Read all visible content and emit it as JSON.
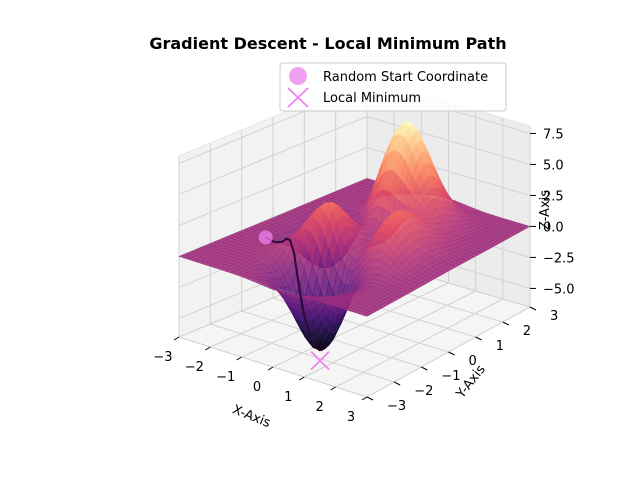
{
  "chart_data": {
    "type": "surface3d",
    "title": "Gradient Descent - Local Minimum Path",
    "xlabel": "X-Axis",
    "ylabel": "Y-Axis",
    "zlabel": "Z-Axis",
    "xlim": [
      -3,
      3
    ],
    "ylim": [
      -3,
      3
    ],
    "zlim": [
      -6.5,
      8.1
    ],
    "xticks": [
      "−3",
      "−2",
      "−1",
      "0",
      "1",
      "2",
      "3"
    ],
    "yticks": [
      "−3",
      "−2",
      "−1",
      "0",
      "1",
      "2",
      "3"
    ],
    "zticks": [
      "−5.0",
      "−2.5",
      "0.0",
      "2.5",
      "5.0",
      "7.5"
    ],
    "xtick_values": [
      -3,
      -2,
      -1,
      0,
      1,
      2,
      3
    ],
    "ytick_values": [
      -3,
      -2,
      -1,
      0,
      1,
      2,
      3
    ],
    "ztick_values": [
      -5,
      -2.5,
      0,
      2.5,
      5,
      7.5
    ],
    "surface_function": "peaks",
    "colormap": "magma",
    "legend": {
      "location": "upper-right",
      "entries": [
        {
          "label": "Random Start Coordinate",
          "marker": "circle",
          "color": "#ee82ee"
        },
        {
          "label": "Local Minimum",
          "marker": "x",
          "color": "#ee82ee"
        }
      ]
    },
    "path": [
      [
        -2.3,
        -0.9
      ],
      [
        -2.1,
        -0.95
      ],
      [
        -1.85,
        -1.0
      ],
      [
        -1.6,
        -1.05
      ],
      [
        -1.35,
        -1.15
      ],
      [
        -1.1,
        -1.28
      ],
      [
        -0.85,
        -1.4
      ],
      [
        -0.65,
        -1.5
      ],
      [
        -0.5,
        -1.56
      ],
      [
        -0.35,
        -1.6
      ],
      [
        -0.25,
        -1.62
      ],
      [
        -0.1,
        -1.63
      ],
      [
        0.0,
        -1.62
      ],
      [
        0.1,
        -1.62
      ],
      [
        0.2,
        -1.62
      ],
      [
        0.23,
        -1.63
      ]
    ],
    "start_point": [
      -2.3,
      -0.9
    ],
    "local_minimum": [
      0.23,
      -1.63
    ]
  }
}
